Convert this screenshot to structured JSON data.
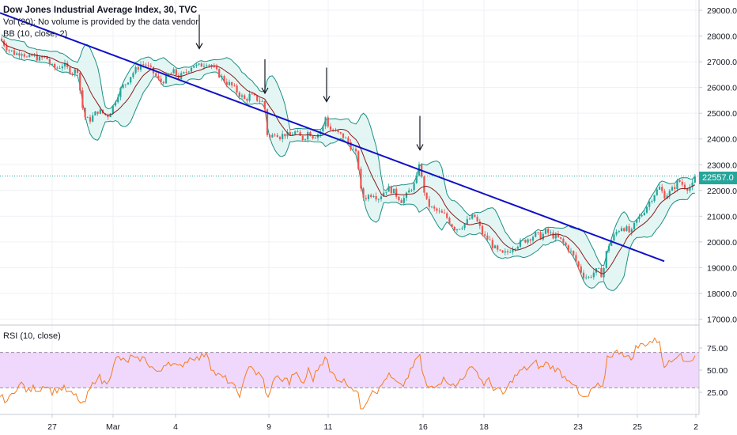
{
  "legend": {
    "title": "Dow Jones Industrial Average Index, 30, TVC",
    "vol": "Vol (20): No volume is provided by the data vendor.",
    "bb": "BB (10, close, 2)",
    "rsi": "RSI (10, close)"
  },
  "price_tag": "22557.0",
  "colors": {
    "trendline": "#1010c8",
    "band": "#1b8f82",
    "band_fill": "#d9f2ef",
    "basis": "#8b1a1a",
    "up": "#26a69a",
    "down": "#ef5350",
    "rsi_line": "#f57c1f",
    "rsi_band": "#efd8fb",
    "rsi_bounds": "#9c8ba8"
  },
  "chart_data": {
    "type": "line",
    "main": {
      "y_ticks": [
        "29000.0",
        "28000.0",
        "27000.0",
        "26000.0",
        "25000.0",
        "24000.0",
        "23000.0",
        "22000.0",
        "21000.0",
        "20000.0",
        "19000.0",
        "18000.0",
        "17000.0"
      ],
      "ylim": [
        16800,
        29400
      ],
      "last_price": 22557.0,
      "price_path": [
        [
          0,
          27900
        ],
        [
          10,
          27500
        ],
        [
          20,
          27300
        ],
        [
          28,
          27400
        ],
        [
          35,
          27100
        ],
        [
          42,
          27250
        ],
        [
          50,
          27100
        ],
        [
          58,
          27200
        ],
        [
          65,
          26800
        ],
        [
          72,
          26750
        ],
        [
          80,
          26900
        ],
        [
          86,
          26700
        ],
        [
          92,
          26600
        ],
        [
          98,
          26700
        ],
        [
          102,
          25700
        ],
        [
          106,
          24900
        ],
        [
          112,
          24700
        ],
        [
          118,
          24900
        ],
        [
          124,
          25100
        ],
        [
          130,
          25000
        ],
        [
          136,
          24900
        ],
        [
          142,
          25200
        ],
        [
          148,
          25700
        ],
        [
          154,
          26000
        ],
        [
          160,
          26200
        ],
        [
          166,
          26500
        ],
        [
          172,
          26700
        ],
        [
          178,
          26900
        ],
        [
          184,
          26900
        ],
        [
          190,
          26700
        ],
        [
          196,
          26500
        ],
        [
          202,
          26200
        ],
        [
          208,
          26300
        ],
        [
          214,
          26500
        ],
        [
          220,
          26600
        ],
        [
          226,
          26400
        ],
        [
          232,
          26500
        ],
        [
          238,
          26700
        ],
        [
          244,
          26900
        ],
        [
          250,
          26800
        ],
        [
          256,
          26900
        ],
        [
          262,
          27000
        ],
        [
          268,
          26800
        ],
        [
          274,
          26600
        ],
        [
          280,
          26400
        ],
        [
          286,
          26200
        ],
        [
          292,
          26100
        ],
        [
          298,
          25900
        ],
        [
          304,
          25700
        ],
        [
          310,
          25500
        ],
        [
          316,
          25700
        ],
        [
          322,
          25600
        ],
        [
          328,
          25500
        ],
        [
          334,
          25400
        ],
        [
          338,
          24200
        ],
        [
          342,
          24000
        ],
        [
          348,
          24300
        ],
        [
          354,
          24100
        ],
        [
          360,
          24200
        ],
        [
          366,
          24100
        ],
        [
          372,
          24300
        ],
        [
          378,
          24100
        ],
        [
          384,
          24000
        ],
        [
          390,
          24300
        ],
        [
          396,
          24100
        ],
        [
          402,
          24200
        ],
        [
          408,
          24400
        ],
        [
          412,
          24900
        ],
        [
          416,
          24400
        ],
        [
          422,
          24300
        ],
        [
          428,
          24200
        ],
        [
          434,
          24100
        ],
        [
          440,
          23900
        ],
        [
          446,
          23600
        ],
        [
          452,
          23300
        ],
        [
          456,
          22000
        ],
        [
          460,
          21700
        ],
        [
          466,
          21800
        ],
        [
          472,
          21900
        ],
        [
          478,
          21700
        ],
        [
          484,
          21900
        ],
        [
          490,
          22100
        ],
        [
          496,
          22000
        ],
        [
          502,
          21800
        ],
        [
          508,
          21600
        ],
        [
          514,
          21800
        ],
        [
          520,
          22100
        ],
        [
          526,
          22300
        ],
        [
          530,
          23100
        ],
        [
          534,
          22300
        ],
        [
          540,
          21500
        ],
        [
          546,
          21300
        ],
        [
          552,
          21200
        ],
        [
          558,
          21100
        ],
        [
          564,
          21000
        ],
        [
          570,
          20700
        ],
        [
          576,
          20500
        ],
        [
          582,
          20600
        ],
        [
          588,
          20700
        ],
        [
          594,
          20900
        ],
        [
          600,
          21000
        ],
        [
          606,
          20600
        ],
        [
          612,
          20200
        ],
        [
          618,
          20100
        ],
        [
          624,
          19800
        ],
        [
          630,
          19600
        ],
        [
          636,
          19500
        ],
        [
          642,
          19600
        ],
        [
          648,
          19800
        ],
        [
          654,
          19900
        ],
        [
          660,
          20000
        ],
        [
          666,
          20100
        ],
        [
          672,
          20200
        ],
        [
          678,
          20300
        ],
        [
          684,
          20200
        ],
        [
          690,
          20400
        ],
        [
          696,
          20300
        ],
        [
          702,
          20200
        ],
        [
          708,
          20100
        ],
        [
          714,
          19900
        ],
        [
          720,
          19700
        ],
        [
          726,
          19400
        ],
        [
          732,
          19000
        ],
        [
          738,
          18700
        ],
        [
          744,
          18600
        ],
        [
          750,
          18800
        ],
        [
          756,
          18900
        ],
        [
          762,
          18700
        ],
        [
          768,
          19800
        ],
        [
          774,
          20100
        ],
        [
          780,
          20400
        ],
        [
          786,
          20600
        ],
        [
          792,
          20500
        ],
        [
          798,
          20300
        ],
        [
          804,
          20800
        ],
        [
          810,
          21000
        ],
        [
          816,
          21300
        ],
        [
          822,
          21600
        ],
        [
          828,
          21900
        ],
        [
          834,
          22100
        ],
        [
          840,
          21800
        ],
        [
          846,
          21900
        ],
        [
          852,
          22100
        ],
        [
          858,
          22400
        ],
        [
          864,
          22200
        ],
        [
          870,
          22100
        ],
        [
          876,
          22200
        ],
        [
          880,
          22557
        ]
      ],
      "trendline": [
        [
          0,
          28900
        ],
        [
          840,
          19250
        ]
      ],
      "arrows_x": [
        252,
        335,
        413,
        531
      ]
    },
    "rsi": {
      "y_ticks": [
        "75.00",
        "50.00",
        "25.00"
      ],
      "ylim": [
        0,
        100
      ],
      "upper": 70,
      "lower": 30,
      "values": [
        [
          0,
          20
        ],
        [
          10,
          15
        ],
        [
          20,
          30
        ],
        [
          28,
          35
        ],
        [
          35,
          25
        ],
        [
          42,
          30
        ],
        [
          50,
          28
        ],
        [
          58,
          35
        ],
        [
          65,
          25
        ],
        [
          72,
          28
        ],
        [
          80,
          30
        ],
        [
          86,
          25
        ],
        [
          92,
          22
        ],
        [
          98,
          20
        ],
        [
          102,
          12
        ],
        [
          106,
          10
        ],
        [
          112,
          25
        ],
        [
          118,
          35
        ],
        [
          124,
          45
        ],
        [
          130,
          35
        ],
        [
          136,
          38
        ],
        [
          142,
          50
        ],
        [
          148,
          65
        ],
        [
          154,
          62
        ],
        [
          160,
          58
        ],
        [
          166,
          66
        ],
        [
          172,
          60
        ],
        [
          178,
          64
        ],
        [
          184,
          62
        ],
        [
          190,
          55
        ],
        [
          196,
          50
        ],
        [
          202,
          45
        ],
        [
          208,
          58
        ],
        [
          214,
          60
        ],
        [
          220,
          56
        ],
        [
          226,
          52
        ],
        [
          232,
          58
        ],
        [
          238,
          62
        ],
        [
          244,
          66
        ],
        [
          250,
          62
        ],
        [
          256,
          66
        ],
        [
          262,
          72
        ],
        [
          268,
          50
        ],
        [
          274,
          45
        ],
        [
          280,
          42
        ],
        [
          286,
          40
        ],
        [
          292,
          35
        ],
        [
          298,
          28
        ],
        [
          304,
          22
        ],
        [
          310,
          40
        ],
        [
          316,
          60
        ],
        [
          322,
          48
        ],
        [
          328,
          44
        ],
        [
          334,
          38
        ],
        [
          338,
          15
        ],
        [
          342,
          25
        ],
        [
          348,
          45
        ],
        [
          354,
          38
        ],
        [
          360,
          42
        ],
        [
          366,
          35
        ],
        [
          372,
          48
        ],
        [
          378,
          40
        ],
        [
          384,
          35
        ],
        [
          390,
          50
        ],
        [
          396,
          40
        ],
        [
          402,
          52
        ],
        [
          408,
          60
        ],
        [
          412,
          70
        ],
        [
          416,
          48
        ],
        [
          422,
          45
        ],
        [
          428,
          40
        ],
        [
          434,
          38
        ],
        [
          440,
          35
        ],
        [
          446,
          30
        ],
        [
          452,
          25
        ],
        [
          456,
          8
        ],
        [
          460,
          10
        ],
        [
          466,
          20
        ],
        [
          472,
          30
        ],
        [
          478,
          25
        ],
        [
          484,
          35
        ],
        [
          490,
          45
        ],
        [
          496,
          40
        ],
        [
          502,
          35
        ],
        [
          508,
          30
        ],
        [
          514,
          40
        ],
        [
          520,
          50
        ],
        [
          526,
          60
        ],
        [
          530,
          72
        ],
        [
          534,
          48
        ],
        [
          540,
          30
        ],
        [
          546,
          32
        ],
        [
          552,
          35
        ],
        [
          558,
          38
        ],
        [
          564,
          40
        ],
        [
          570,
          35
        ],
        [
          576,
          30
        ],
        [
          582,
          40
        ],
        [
          588,
          45
        ],
        [
          594,
          50
        ],
        [
          600,
          55
        ],
        [
          606,
          42
        ],
        [
          612,
          35
        ],
        [
          618,
          38
        ],
        [
          624,
          30
        ],
        [
          630,
          28
        ],
        [
          636,
          22
        ],
        [
          642,
          30
        ],
        [
          648,
          40
        ],
        [
          654,
          45
        ],
        [
          660,
          50
        ],
        [
          666,
          52
        ],
        [
          672,
          55
        ],
        [
          678,
          58
        ],
        [
          684,
          52
        ],
        [
          690,
          58
        ],
        [
          696,
          54
        ],
        [
          702,
          52
        ],
        [
          708,
          48
        ],
        [
          714,
          42
        ],
        [
          720,
          40
        ],
        [
          726,
          35
        ],
        [
          732,
          22
        ],
        [
          738,
          18
        ],
        [
          744,
          20
        ],
        [
          750,
          30
        ],
        [
          756,
          32
        ],
        [
          762,
          28
        ],
        [
          768,
          65
        ],
        [
          774,
          68
        ],
        [
          780,
          70
        ],
        [
          786,
          72
        ],
        [
          792,
          65
        ],
        [
          798,
          62
        ],
        [
          804,
          75
        ],
        [
          810,
          78
        ],
        [
          816,
          80
        ],
        [
          822,
          82
        ],
        [
          828,
          83
        ],
        [
          834,
          84
        ],
        [
          840,
          50
        ],
        [
          846,
          62
        ],
        [
          852,
          64
        ],
        [
          858,
          70
        ],
        [
          864,
          60
        ],
        [
          870,
          62
        ],
        [
          876,
          62
        ],
        [
          880,
          70
        ]
      ]
    },
    "x_ticks": [
      {
        "label": "27",
        "pos": 66
      },
      {
        "label": "Mar",
        "pos": 143
      },
      {
        "label": "4",
        "pos": 222
      },
      {
        "label": "9",
        "pos": 340
      },
      {
        "label": "11",
        "pos": 415
      },
      {
        "label": "16",
        "pos": 535
      },
      {
        "label": "18",
        "pos": 612
      },
      {
        "label": "23",
        "pos": 731
      },
      {
        "label": "25",
        "pos": 806
      },
      {
        "label": "2",
        "pos": 880
      }
    ]
  }
}
